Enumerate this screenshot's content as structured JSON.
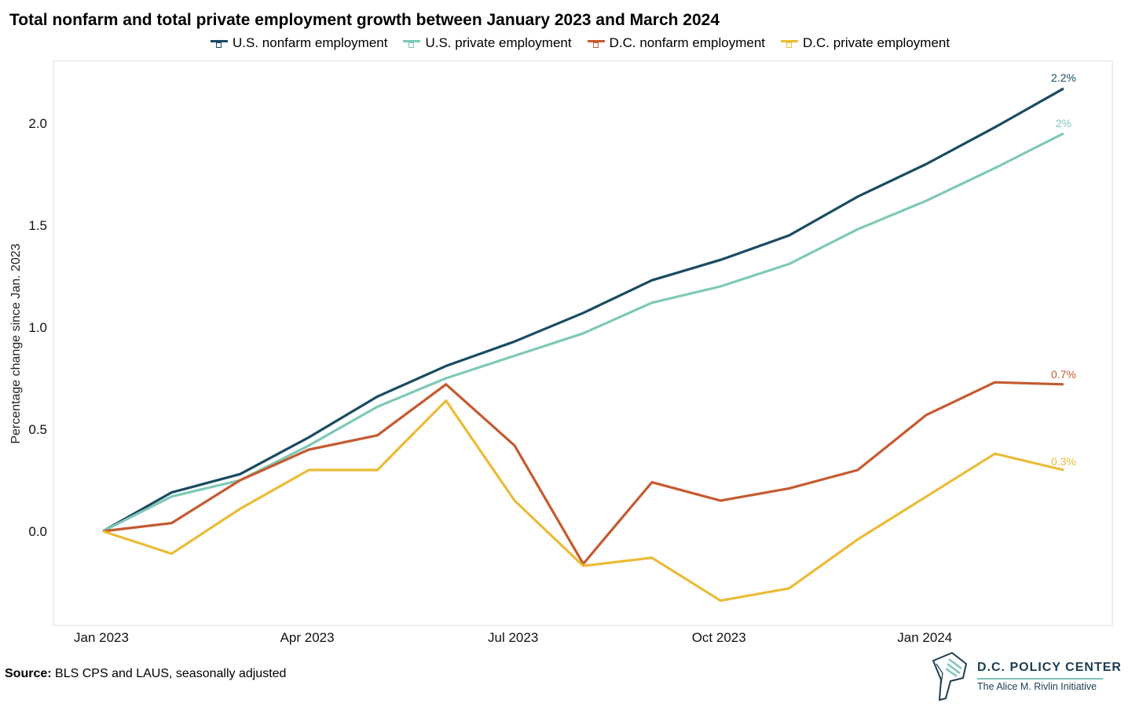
{
  "chart_data": {
    "type": "line",
    "title": "Total nonfarm and total private employment growth between January 2023 and March 2024",
    "xlabel": "",
    "ylabel": "Percentage change since Jan. 2023",
    "x": [
      "Jan 2023",
      "Feb 2023",
      "Mar 2023",
      "Apr 2023",
      "May 2023",
      "Jun 2023",
      "Jul 2023",
      "Aug 2023",
      "Sep 2023",
      "Oct 2023",
      "Nov 2023",
      "Dec 2023",
      "Jan 2024",
      "Feb 2024",
      "Mar 2024"
    ],
    "xticks": [
      "Jan 2023",
      "Apr 2023",
      "Jul 2023",
      "Oct 2023",
      "Jan 2024"
    ],
    "yticks": [
      0.0,
      0.5,
      1.0,
      1.5,
      2.0
    ],
    "ylim": [
      -0.45,
      2.3
    ],
    "series": [
      {
        "name": "U.S. nonfarm employment",
        "color": "#1a4a63",
        "values": [
          0.0,
          0.19,
          0.28,
          0.46,
          0.66,
          0.81,
          0.93,
          1.07,
          1.23,
          1.33,
          1.45,
          1.64,
          1.8,
          1.98,
          2.17
        ],
        "end_label": "2.2%"
      },
      {
        "name": "U.S. private employment",
        "color": "#7ec8b7",
        "values": [
          0.0,
          0.17,
          0.25,
          0.42,
          0.61,
          0.75,
          0.86,
          0.97,
          1.12,
          1.2,
          1.31,
          1.48,
          1.62,
          1.78,
          1.95
        ],
        "end_label": "2%"
      },
      {
        "name": "D.C. nonfarm employment",
        "color": "#c55a30",
        "values": [
          0.0,
          0.04,
          0.25,
          0.4,
          0.47,
          0.72,
          0.42,
          -0.16,
          0.24,
          0.15,
          0.21,
          0.3,
          0.57,
          0.73,
          0.72
        ],
        "end_label": "0.7%"
      },
      {
        "name": "D.C. private employment",
        "color": "#ebbb38",
        "values": [
          0.0,
          -0.11,
          0.11,
          0.3,
          0.3,
          0.64,
          0.15,
          -0.17,
          -0.13,
          -0.34,
          -0.28,
          -0.04,
          0.17,
          0.38,
          0.3
        ],
        "end_label": "0.3%"
      }
    ],
    "legend_position": "top",
    "grid": false
  },
  "source_label": "Source:",
  "source_text": "BLS CPS and LAUS, seasonally adjusted",
  "logo": {
    "name": "D.C. POLICY CENTER",
    "subtitle": "The Alice M. Rivlin Initiative"
  }
}
